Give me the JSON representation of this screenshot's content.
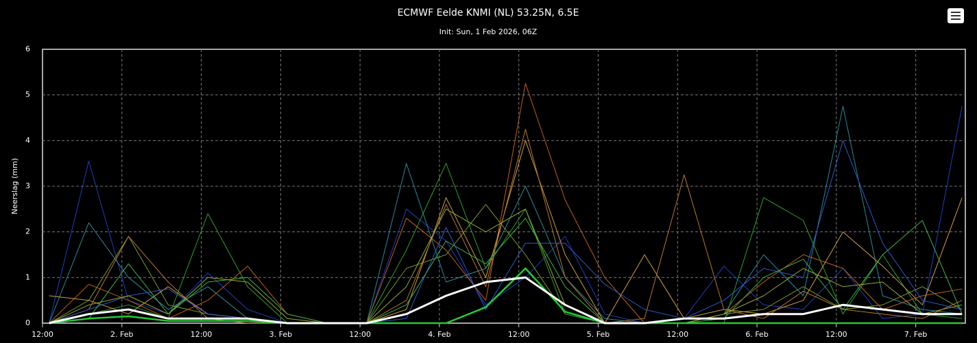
{
  "chart_data": {
    "type": "line",
    "title": "ECMWF Eelde KNMI (NL) 53.25N, 6.5E",
    "subtitle": "Init: Sun, 1 Feb 2026, 06Z",
    "y_label": "Neerslag (mm)",
    "x": [
      1,
      7,
      13,
      19,
      25,
      31,
      37,
      43,
      49,
      55,
      61,
      67,
      73,
      79,
      85,
      91,
      97,
      103,
      109,
      115,
      121,
      127,
      133,
      139
    ],
    "xlim": [
      0,
      139.5
    ],
    "xticks": [
      {
        "value": 0,
        "label": "12:00"
      },
      {
        "value": 12,
        "label": "2. Feb"
      },
      {
        "value": 24,
        "label": "12:00"
      },
      {
        "value": 36,
        "label": "3. Feb"
      },
      {
        "value": 48,
        "label": "12:00"
      },
      {
        "value": 60,
        "label": "4. Feb"
      },
      {
        "value": 72,
        "label": "12:00"
      },
      {
        "value": 84,
        "label": "5. Feb"
      },
      {
        "value": 96,
        "label": "12:00"
      },
      {
        "value": 108,
        "label": "6. Feb"
      },
      {
        "value": 120,
        "label": "12:00"
      },
      {
        "value": 132,
        "label": "7. Feb"
      }
    ],
    "ylim": [
      0,
      6
    ],
    "yticks": [
      0,
      1,
      2,
      3,
      4,
      5,
      6
    ],
    "grid": true,
    "series": [
      {
        "color": "#1f3fbf",
        "width": 1,
        "values": [
          0,
          3.55,
          0.5,
          0.2,
          1.1,
          0.3,
          0,
          0,
          0,
          2.5,
          1.8,
          0.4,
          1.0,
          1.9,
          0.2,
          0,
          0.1,
          1.25,
          0.4,
          0.3,
          1.2,
          0.1,
          0.2,
          4.75
        ]
      },
      {
        "color": "#2a8a9a",
        "width": 1,
        "values": [
          0,
          2.2,
          1.0,
          0.3,
          0.8,
          0.1,
          0,
          0,
          0,
          3.5,
          0.9,
          1.2,
          3.0,
          1.0,
          0.1,
          0,
          0,
          0.2,
          1.5,
          0.6,
          4.75,
          0.6,
          0.3,
          0.2
        ]
      },
      {
        "color": "#7a9a2a",
        "width": 1,
        "values": [
          0,
          0.5,
          1.9,
          0.4,
          0.2,
          0.1,
          0,
          0,
          0,
          1.2,
          1.5,
          2.6,
          1.5,
          0.2,
          0,
          0,
          0,
          0.2,
          0.3,
          0.8,
          0.3,
          0.4,
          0.8,
          0.3
        ]
      },
      {
        "color": "#2ea02e",
        "width": 1,
        "values": [
          0,
          0.2,
          0.4,
          0.1,
          2.4,
          0.8,
          0,
          0,
          0,
          1.6,
          3.5,
          1.2,
          2.5,
          0.2,
          0,
          0,
          0,
          0,
          2.75,
          2.25,
          0.2,
          1.5,
          0.2,
          0.1
        ]
      },
      {
        "color": "#c0601a",
        "width": 1,
        "values": [
          0,
          0.85,
          0.5,
          0.1,
          0.5,
          1.25,
          0.2,
          0,
          0,
          2.3,
          1.6,
          0.5,
          5.25,
          2.7,
          1.0,
          0,
          0,
          0.2,
          0.9,
          1.5,
          1.2,
          0.3,
          0.6,
          0.75
        ]
      },
      {
        "color": "#d0a040",
        "width": 1,
        "values": [
          0.6,
          0.5,
          0.2,
          0.8,
          0.2,
          0.1,
          0,
          0,
          0,
          0.3,
          2.75,
          1.0,
          4.0,
          1.5,
          0,
          1.5,
          0.1,
          0.3,
          0.2,
          0.5,
          2.0,
          1.25,
          0.4,
          2.75
        ]
      },
      {
        "color": "#b8782a",
        "width": 1,
        "values": [
          0,
          0.3,
          1.9,
          0.9,
          0.1,
          0,
          0,
          0,
          0,
          0.5,
          2.6,
          0.8,
          4.25,
          1.0,
          0,
          0.1,
          3.25,
          0.3,
          0.1,
          0.7,
          0.3,
          0.2,
          0.1,
          0.5
        ]
      },
      {
        "color": "#2a5ad0",
        "width": 1,
        "values": [
          0,
          0.3,
          0.6,
          0.75,
          0.2,
          0.1,
          0,
          0,
          0,
          0.1,
          2.1,
          0.3,
          1.75,
          1.75,
          0.85,
          0.3,
          0.1,
          0.5,
          1.2,
          1.0,
          4.0,
          1.75,
          0.5,
          0.3
        ]
      },
      {
        "color": "#3cb44a",
        "width": 1,
        "values": [
          0,
          0.1,
          1.3,
          0.2,
          0.9,
          1.0,
          0.2,
          0,
          0,
          0.4,
          1.8,
          1.3,
          2.3,
          0.8,
          0,
          0,
          0,
          0.1,
          1.0,
          1.4,
          0.3,
          1.5,
          2.25,
          0.2
        ]
      },
      {
        "color": "#9aaa30",
        "width": 1,
        "values": [
          0,
          0.4,
          0.6,
          0.2,
          1.0,
          0.9,
          0.1,
          0,
          0,
          0.8,
          2.5,
          2.0,
          2.5,
          0.4,
          0,
          0,
          0,
          0.2,
          0.6,
          1.2,
          0.8,
          0.9,
          0.2,
          0.4
        ]
      },
      {
        "color": "#22cc33",
        "width": 2.5,
        "values": [
          0,
          0.1,
          0.15,
          0.05,
          0.05,
          0.05,
          0,
          0,
          0,
          0,
          0,
          0.35,
          1.2,
          0.25,
          0,
          0,
          0,
          0,
          0,
          0,
          0,
          0,
          0,
          0
        ]
      },
      {
        "color": "#ffffff",
        "width": 3,
        "values": [
          0,
          0.2,
          0.3,
          0.1,
          0.1,
          0.1,
          0,
          0,
          0,
          0.2,
          0.6,
          0.9,
          1.0,
          0.4,
          0,
          0,
          0.1,
          0.1,
          0.2,
          0.2,
          0.4,
          0.3,
          0.2,
          0.2
        ]
      }
    ]
  }
}
